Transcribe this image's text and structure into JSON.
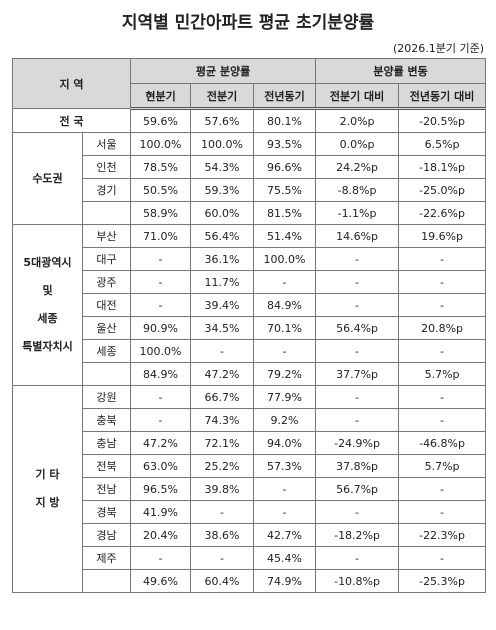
{
  "title": "지역별 민간아파트 평균 초기분양률",
  "note": "(2026.1분기 기준)",
  "header": {
    "region": "지 역",
    "avg": "평균 분양률",
    "change": "분양률 변동",
    "sub": [
      "현분기",
      "전분기",
      "전년동기",
      "전분기 대비",
      "전년동기 대비"
    ]
  },
  "national": {
    "label": "전 국",
    "values": [
      "59.6%",
      "57.6%",
      "80.1%",
      "2.0%p",
      "-20.5%p"
    ]
  },
  "groups": [
    {
      "label": [
        "수도권"
      ],
      "rows": [
        {
          "name": "서울",
          "values": [
            "100.0%",
            "100.0%",
            "93.5%",
            "0.0%p",
            "6.5%p"
          ]
        },
        {
          "name": "인천",
          "values": [
            "78.5%",
            "54.3%",
            "96.6%",
            "24.2%p",
            "-18.1%p"
          ]
        },
        {
          "name": "경기",
          "values": [
            "50.5%",
            "59.3%",
            "75.5%",
            "-8.8%p",
            "-25.0%p"
          ]
        }
      ],
      "subtotal": [
        "58.9%",
        "60.0%",
        "81.5%",
        "-1.1%p",
        "-22.6%p"
      ]
    },
    {
      "label": [
        "5대광역시",
        "및",
        "세종",
        "특별자치시"
      ],
      "rows": [
        {
          "name": "부산",
          "values": [
            "71.0%",
            "56.4%",
            "51.4%",
            "14.6%p",
            "19.6%p"
          ]
        },
        {
          "name": "대구",
          "values": [
            "-",
            "36.1%",
            "100.0%",
            "-",
            "-"
          ]
        },
        {
          "name": "광주",
          "values": [
            "-",
            "11.7%",
            "-",
            "-",
            "-"
          ]
        },
        {
          "name": "대전",
          "values": [
            "-",
            "39.4%",
            "84.9%",
            "-",
            "-"
          ]
        },
        {
          "name": "울산",
          "values": [
            "90.9%",
            "34.5%",
            "70.1%",
            "56.4%p",
            "20.8%p"
          ]
        },
        {
          "name": "세종",
          "values": [
            "100.0%",
            "-",
            "-",
            "-",
            "-"
          ]
        }
      ],
      "subtotal": [
        "84.9%",
        "47.2%",
        "79.2%",
        "37.7%p",
        "5.7%p"
      ]
    },
    {
      "label": [
        "기 타",
        "지 방"
      ],
      "rows": [
        {
          "name": "강원",
          "values": [
            "-",
            "66.7%",
            "77.9%",
            "-",
            "-"
          ]
        },
        {
          "name": "충북",
          "values": [
            "-",
            "74.3%",
            "9.2%",
            "-",
            "-"
          ]
        },
        {
          "name": "충남",
          "values": [
            "47.2%",
            "72.1%",
            "94.0%",
            "-24.9%p",
            "-46.8%p"
          ]
        },
        {
          "name": "전북",
          "values": [
            "63.0%",
            "25.2%",
            "57.3%",
            "37.8%p",
            "5.7%p"
          ]
        },
        {
          "name": "전남",
          "values": [
            "96.5%",
            "39.8%",
            "-",
            "56.7%p",
            "-"
          ]
        },
        {
          "name": "경북",
          "values": [
            "41.9%",
            "-",
            "-",
            "-",
            "-"
          ]
        },
        {
          "name": "경남",
          "values": [
            "20.4%",
            "38.6%",
            "42.7%",
            "-18.2%p",
            "-22.3%p"
          ]
        },
        {
          "name": "제주",
          "values": [
            "-",
            "-",
            "45.4%",
            "-",
            "-"
          ]
        }
      ],
      "subtotal": [
        "49.6%",
        "60.4%",
        "74.9%",
        "-10.8%p",
        "-25.3%p"
      ]
    }
  ]
}
